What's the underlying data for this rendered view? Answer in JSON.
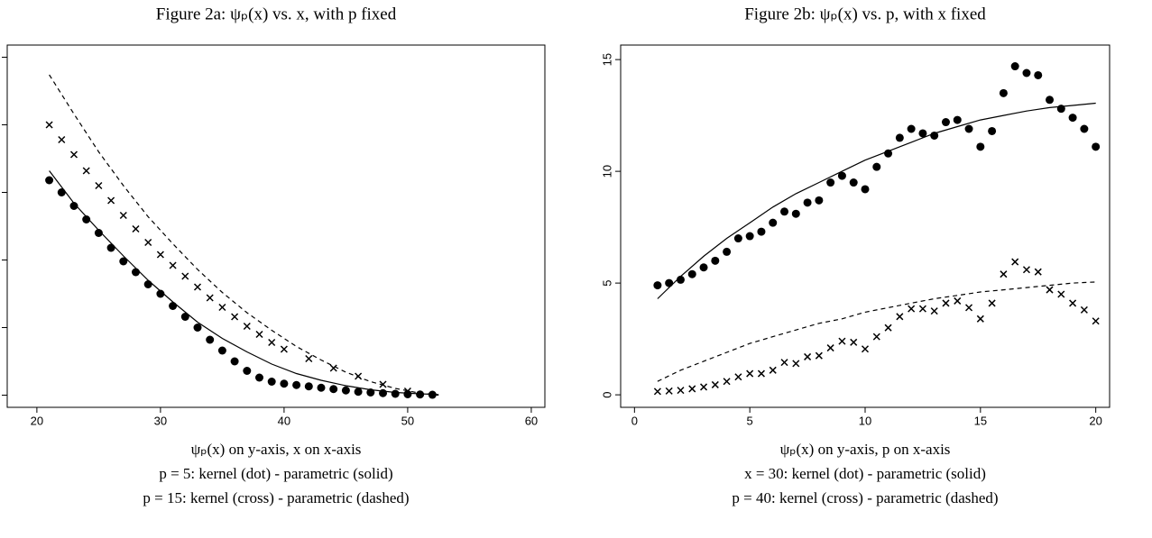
{
  "chart_data": [
    {
      "type": "scatter",
      "title": "Figure 2a: ψₚ(x) vs. x, with p fixed",
      "caption": [
        "ψₚ(x) on y-axis, x on x-axis",
        "p = 5: kernel (dot) - parametric (solid)",
        "p = 15: kernel (cross) - parametric (dashed)"
      ],
      "xlim": [
        17.6,
        61.1
      ],
      "ylim": [
        -0.9,
        25.9
      ],
      "xticks": [
        20,
        30,
        40,
        50,
        60
      ],
      "yticks": [
        0,
        5,
        10,
        15,
        20,
        25
      ],
      "series": [
        {
          "style": "dot",
          "color": "#000000",
          "x": [
            21,
            22,
            23,
            24,
            25,
            26,
            27,
            28,
            29,
            30,
            31,
            32,
            33,
            34,
            35,
            36,
            37,
            38,
            39,
            40,
            41,
            42,
            43,
            44,
            45,
            46,
            47,
            48,
            49,
            50,
            51,
            52
          ],
          "values": [
            15.9,
            15,
            14,
            13,
            12,
            10.9,
            9.9,
            9.1,
            8.2,
            7.5,
            6.6,
            5.8,
            5,
            4.1,
            3.3,
            2.5,
            1.8,
            1.3,
            1,
            0.85,
            0.75,
            0.65,
            0.55,
            0.45,
            0.35,
            0.25,
            0.2,
            0.15,
            0.1,
            0.07,
            0.05,
            0.03
          ]
        },
        {
          "style": "solid",
          "color": "#000000",
          "x": [
            21,
            23,
            25,
            27,
            29,
            31,
            33,
            35,
            37,
            39,
            41,
            43,
            45,
            47,
            49,
            51,
            52.5
          ],
          "values": [
            16.6,
            14.2,
            12.2,
            10.3,
            8.5,
            6.9,
            5.4,
            4.2,
            3.2,
            2.3,
            1.6,
            1.1,
            0.7,
            0.4,
            0.2,
            0.1,
            0.05
          ]
        },
        {
          "style": "cross",
          "color": "#000000",
          "x": [
            21,
            22,
            23,
            24,
            25,
            26,
            27,
            28,
            29,
            30,
            31,
            32,
            33,
            34,
            35,
            36,
            37,
            38,
            39,
            40,
            42,
            44,
            46,
            48,
            50
          ],
          "values": [
            20,
            18.9,
            17.8,
            16.6,
            15.5,
            14.4,
            13.3,
            12.3,
            11.3,
            10.4,
            9.6,
            8.8,
            8,
            7.2,
            6.5,
            5.8,
            5.1,
            4.5,
            3.9,
            3.4,
            2.7,
            2,
            1.4,
            0.8,
            0.3
          ]
        },
        {
          "style": "dashed",
          "color": "#000000",
          "x": [
            21,
            23,
            25,
            27,
            29,
            31,
            33,
            35,
            37,
            39,
            41,
            43,
            45,
            47,
            49,
            51,
            52.5
          ],
          "values": [
            23.7,
            20.8,
            18,
            15.5,
            13.2,
            11.2,
            9.3,
            7.6,
            6.1,
            4.8,
            3.6,
            2.6,
            1.7,
            1,
            0.5,
            0.15,
            0
          ]
        }
      ]
    },
    {
      "type": "scatter",
      "title": "Figure 2b: ψₚ(x) vs. p, with x fixed",
      "caption": [
        "ψₚ(x) on y-axis, p on x-axis",
        "x = 30: kernel (dot) - parametric (solid)",
        "p = 40: kernel (cross) - parametric (dashed)"
      ],
      "xlim": [
        -0.6,
        20.6
      ],
      "ylim": [
        -0.56,
        15.65
      ],
      "xticks": [
        0,
        5,
        10,
        15,
        20
      ],
      "yticks": [
        0,
        5,
        10,
        15
      ],
      "series": [
        {
          "style": "dot",
          "color": "#000000",
          "x": [
            1,
            1.5,
            2,
            2.5,
            3,
            3.5,
            4,
            4.5,
            5,
            5.5,
            6,
            6.5,
            7,
            7.5,
            8,
            8.5,
            9,
            9.5,
            10,
            10.5,
            11,
            11.5,
            12,
            12.5,
            13,
            13.5,
            14,
            14.5,
            15,
            15.5,
            16,
            16.5,
            17,
            17.5,
            18,
            18.5,
            19,
            19.5,
            20
          ],
          "values": [
            4.9,
            5,
            5.15,
            5.4,
            5.7,
            6,
            6.4,
            7,
            7.1,
            7.3,
            7.7,
            8.2,
            8.1,
            8.6,
            8.7,
            9.5,
            9.8,
            9.5,
            9.2,
            10.2,
            10.8,
            11.5,
            11.9,
            11.7,
            11.6,
            12.2,
            12.3,
            11.9,
            11.1,
            11.8,
            13.5,
            14.7,
            14.4,
            14.3,
            13.2,
            12.8,
            12.4,
            11.9,
            11.1
          ]
        },
        {
          "style": "solid",
          "color": "#000000",
          "x": [
            1,
            2,
            3,
            4,
            5,
            6,
            7,
            8,
            9,
            10,
            11,
            12,
            13,
            14,
            15,
            16,
            17,
            18,
            19,
            20
          ],
          "values": [
            4.3,
            5.3,
            6.2,
            7,
            7.7,
            8.4,
            9,
            9.5,
            10,
            10.5,
            10.9,
            11.3,
            11.7,
            12,
            12.3,
            12.5,
            12.7,
            12.85,
            12.95,
            13.05
          ]
        },
        {
          "style": "cross",
          "color": "#000000",
          "x": [
            1,
            1.5,
            2,
            2.5,
            3,
            3.5,
            4,
            4.5,
            5,
            5.5,
            6,
            6.5,
            7,
            7.5,
            8,
            8.5,
            9,
            9.5,
            10,
            10.5,
            11,
            11.5,
            12,
            12.5,
            13,
            13.5,
            14,
            14.5,
            15,
            15.5,
            16,
            16.5,
            17,
            17.5,
            18,
            18.5,
            19,
            19.5,
            20
          ],
          "values": [
            0.15,
            0.17,
            0.2,
            0.27,
            0.35,
            0.45,
            0.6,
            0.8,
            0.95,
            0.95,
            1.1,
            1.45,
            1.4,
            1.7,
            1.75,
            2.1,
            2.4,
            2.35,
            2.05,
            2.6,
            3,
            3.5,
            3.85,
            3.85,
            3.75,
            4.1,
            4.2,
            3.9,
            3.4,
            4.1,
            5.4,
            5.95,
            5.6,
            5.5,
            4.7,
            4.5,
            4.1,
            3.8,
            3.3
          ]
        },
        {
          "style": "dashed",
          "color": "#000000",
          "x": [
            1,
            2,
            3,
            4,
            5,
            6,
            7,
            8,
            9,
            10,
            11,
            12,
            13,
            14,
            15,
            16,
            17,
            18,
            19,
            20
          ],
          "values": [
            0.6,
            1.1,
            1.5,
            1.9,
            2.3,
            2.6,
            2.9,
            3.2,
            3.4,
            3.7,
            3.9,
            4.1,
            4.3,
            4.45,
            4.6,
            4.7,
            4.8,
            4.9,
            5,
            5.05
          ]
        }
      ]
    }
  ]
}
